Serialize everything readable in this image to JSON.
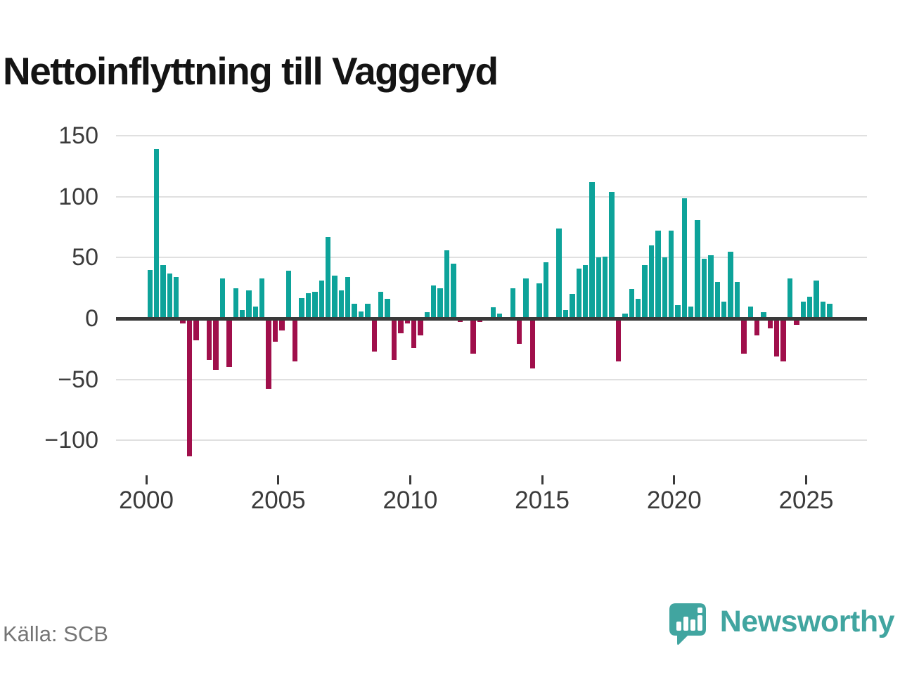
{
  "title": "Nettoinflyttning till Vaggeryd",
  "source": "Källa: SCB",
  "branding": {
    "wordmark": "Newsworthy",
    "logo_icon": "newsworthy-speech-bubble-bar-chart-icon"
  },
  "colors": {
    "positive": "#0DA39A",
    "negative": "#A00F4B",
    "axis": "#3A3A3A",
    "grid": "#E0E0E0",
    "tick_label": "#3B3B3B",
    "title": "#141414",
    "source_text": "#757575",
    "brand": "#41A5A0"
  },
  "chart_data": {
    "type": "bar",
    "title": "Nettoinflyttning till Vaggeryd",
    "xlabel": "",
    "ylabel": "",
    "x_unit": "quarter",
    "start": "2000 Q1",
    "end": "2025 Q4",
    "grid": "horizontal",
    "legend": "none",
    "ylim": [
      -130,
      165
    ],
    "yticks": [
      150,
      100,
      50,
      0,
      -50,
      -100
    ],
    "ytick_labels": [
      "150",
      "100",
      "50",
      "0",
      "−50",
      "−100"
    ],
    "xtick_years": [
      2000,
      2005,
      2010,
      2015,
      2020,
      2025
    ],
    "xtick_labels": [
      "2000",
      "2005",
      "2010",
      "2015",
      "2020",
      "2025"
    ],
    "categories": [
      "2000 Q1",
      "2000 Q2",
      "2000 Q3",
      "2000 Q4",
      "2001 Q1",
      "2001 Q2",
      "2001 Q3",
      "2001 Q4",
      "2002 Q1",
      "2002 Q2",
      "2002 Q3",
      "2002 Q4",
      "2003 Q1",
      "2003 Q2",
      "2003 Q3",
      "2003 Q4",
      "2004 Q1",
      "2004 Q2",
      "2004 Q3",
      "2004 Q4",
      "2005 Q1",
      "2005 Q2",
      "2005 Q3",
      "2005 Q4",
      "2006 Q1",
      "2006 Q2",
      "2006 Q3",
      "2006 Q4",
      "2007 Q1",
      "2007 Q2",
      "2007 Q3",
      "2007 Q4",
      "2008 Q1",
      "2008 Q2",
      "2008 Q3",
      "2008 Q4",
      "2009 Q1",
      "2009 Q2",
      "2009 Q3",
      "2009 Q4",
      "2010 Q1",
      "2010 Q2",
      "2010 Q3",
      "2010 Q4",
      "2011 Q1",
      "2011 Q2",
      "2011 Q3",
      "2011 Q4",
      "2012 Q1",
      "2012 Q2",
      "2012 Q3",
      "2012 Q4",
      "2013 Q1",
      "2013 Q2",
      "2013 Q3",
      "2013 Q4",
      "2014 Q1",
      "2014 Q2",
      "2014 Q3",
      "2014 Q4",
      "2015 Q1",
      "2015 Q2",
      "2015 Q3",
      "2015 Q4",
      "2016 Q1",
      "2016 Q2",
      "2016 Q3",
      "2016 Q4",
      "2017 Q1",
      "2017 Q2",
      "2017 Q3",
      "2017 Q4",
      "2018 Q1",
      "2018 Q2",
      "2018 Q3",
      "2018 Q4",
      "2019 Q1",
      "2019 Q2",
      "2019 Q3",
      "2019 Q4",
      "2020 Q1",
      "2020 Q2",
      "2020 Q3",
      "2020 Q4",
      "2021 Q1",
      "2021 Q2",
      "2021 Q3",
      "2021 Q4",
      "2022 Q1",
      "2022 Q2",
      "2022 Q3",
      "2022 Q4",
      "2023 Q1",
      "2023 Q2",
      "2023 Q3",
      "2023 Q4",
      "2024 Q1",
      "2024 Q2",
      "2024 Q3",
      "2024 Q4",
      "2025 Q1",
      "2025 Q2",
      "2025 Q3",
      "2025 Q4"
    ],
    "values": [
      40,
      139,
      44,
      37,
      34,
      -4,
      -113,
      -18,
      0,
      -34,
      -42,
      33,
      -40,
      25,
      7,
      23,
      10,
      33,
      -58,
      -19,
      -10,
      39,
      -35,
      17,
      21,
      22,
      31,
      67,
      35,
      23,
      34,
      12,
      6,
      12,
      -27,
      22,
      16,
      -34,
      -12,
      -4,
      -24,
      -14,
      5,
      27,
      25,
      56,
      45,
      -3,
      -2,
      -29,
      -3,
      -2,
      9,
      4,
      0,
      25,
      -21,
      33,
      -41,
      29,
      46,
      -2,
      74,
      7,
      20,
      41,
      44,
      112,
      50,
      51,
      104,
      -35,
      4,
      24,
      16,
      44,
      60,
      72,
      50,
      72,
      11,
      99,
      10,
      81,
      49,
      52,
      30,
      14,
      55,
      30,
      -29,
      10,
      -14,
      5,
      -8,
      -31,
      -35,
      33,
      -5,
      14,
      18,
      31,
      14,
      12
    ]
  }
}
